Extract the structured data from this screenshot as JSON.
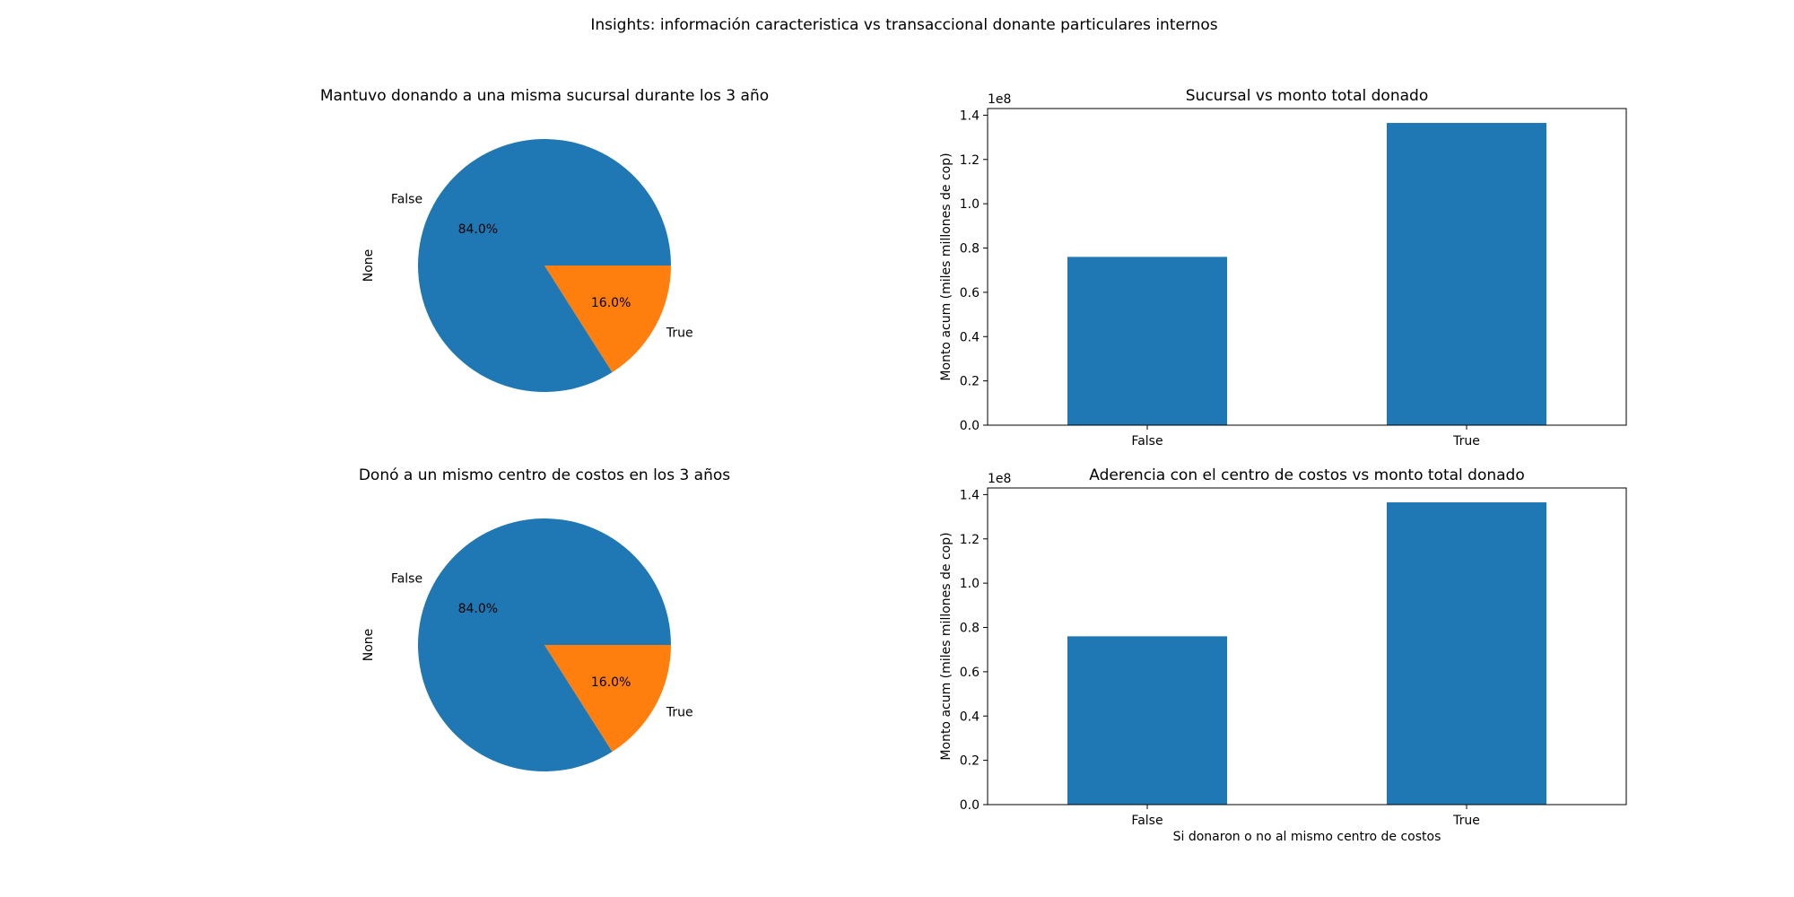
{
  "figure": {
    "title": "Insights: información caracteristica vs transaccional donante particulares internos"
  },
  "chart_data": [
    {
      "type": "pie",
      "title": "Mantuvo donando a una misma sucursal durante los 3 año",
      "ylabel": "None",
      "labels": [
        "False",
        "True"
      ],
      "values": [
        84.0,
        16.0
      ],
      "value_labels": [
        "84.0%",
        "16.0%"
      ],
      "colors": [
        "#1f77b4",
        "#ff7f0e"
      ]
    },
    {
      "type": "bar",
      "title": "Sucursal vs monto total donado",
      "xlabel": "",
      "ylabel": "Monto acum (miles millones de cop)",
      "categories": [
        "False",
        "True"
      ],
      "values": [
        76000000,
        136500000
      ],
      "ylim": [
        0,
        143000000
      ],
      "yticks": [
        0,
        20000000,
        40000000,
        60000000,
        80000000,
        100000000,
        120000000,
        140000000
      ],
      "ytick_labels": [
        "0.0",
        "0.2",
        "0.4",
        "0.6",
        "0.8",
        "1.0",
        "1.2",
        "1.4"
      ],
      "offset_text": "1e8",
      "color": "#1f77b4"
    },
    {
      "type": "pie",
      "title": "Donó a un mismo centro de costos en los 3 años",
      "ylabel": "None",
      "labels": [
        "False",
        "True"
      ],
      "values": [
        84.0,
        16.0
      ],
      "value_labels": [
        "84.0%",
        "16.0%"
      ],
      "colors": [
        "#1f77b4",
        "#ff7f0e"
      ]
    },
    {
      "type": "bar",
      "title": "Aderencia con el centro de costos vs monto total donado",
      "xlabel": "Si donaron o no al mismo centro de costos",
      "ylabel": "Monto acum (miles millones de cop)",
      "categories": [
        "False",
        "True"
      ],
      "values": [
        76000000,
        136500000
      ],
      "ylim": [
        0,
        143000000
      ],
      "yticks": [
        0,
        20000000,
        40000000,
        60000000,
        80000000,
        100000000,
        120000000,
        140000000
      ],
      "ytick_labels": [
        "0.0",
        "0.2",
        "0.4",
        "0.6",
        "0.8",
        "1.0",
        "1.2",
        "1.4"
      ],
      "offset_text": "1e8",
      "color": "#1f77b4"
    }
  ]
}
